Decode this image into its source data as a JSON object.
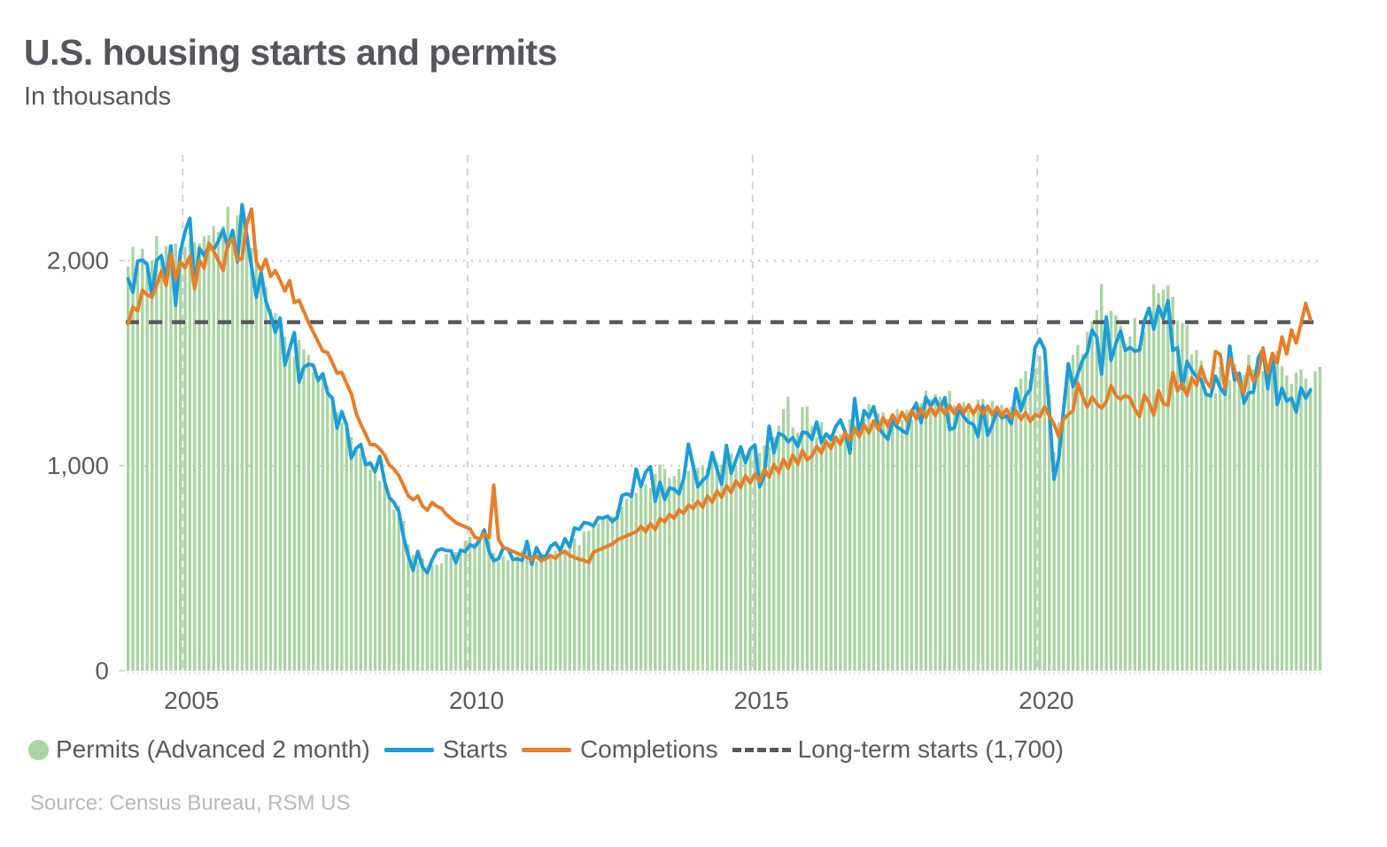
{
  "header": {
    "title": "U.S. housing starts and permits",
    "subtitle": "In thousands"
  },
  "legend": {
    "items": [
      {
        "label": "Permits (Advanced 2 month)"
      },
      {
        "label": "Starts"
      },
      {
        "label": "Completions"
      },
      {
        "label": "Long-term starts (1,700)"
      }
    ]
  },
  "source": {
    "text": "Source: Census Bureau, RSM US"
  },
  "chart_data": {
    "type": "combo-bar-line",
    "frequency": "monthly",
    "x_start": "2004-01",
    "x_end": "2024-12",
    "ylim": [
      0,
      2520
    ],
    "grid": {
      "horizontal": "dotted",
      "vertical": "dashed",
      "grid_color": "#cbcccd"
    },
    "yticks": [
      {
        "label": "0",
        "value": 0
      },
      {
        "label": "1,000",
        "value": 1000
      },
      {
        "label": "2,000",
        "value": 2000
      }
    ],
    "xticks": [
      {
        "label": "2005",
        "month_index": 12
      },
      {
        "label": "2010",
        "month_index": 72
      },
      {
        "label": "2015",
        "month_index": 132
      },
      {
        "label": "2020",
        "month_index": 192
      }
    ],
    "reference_line": {
      "label": "Long-term starts (1,700)",
      "value": 1700,
      "color": "#55585c",
      "style": "dashed"
    },
    "series": [
      {
        "name": "Permits (Advanced 2 month)",
        "type": "bar",
        "color": "#a8d5a0",
        "values": [
          1971,
          2067,
          1966,
          2057,
          1998,
          2002,
          2121,
          1998,
          2070,
          2019,
          2083,
          2061,
          2068,
          2105,
          2089,
          2084,
          2119,
          2123,
          2168,
          2139,
          2170,
          2263,
          2150,
          2220,
          2207,
          2125,
          2062,
          2053,
          1973,
          1869,
          1763,
          1745,
          1713,
          1630,
          1555,
          1532,
          1613,
          1568,
          1541,
          1457,
          1408,
          1426,
          1389,
          1317,
          1261,
          1211,
          1178,
          1139,
          1080,
          1061,
          1044,
          982,
          978,
          927,
          911,
          857,
          786,
          805,
          730,
          616,
          564,
          531,
          547,
          511,
          516,
          518,
          523,
          570,
          564,
          579,
          588,
          634,
          653,
          622,
          632,
          685,
          637,
          574,
          533,
          559,
          539,
          550,
          561,
          585,
          627,
          563,
          534,
          574,
          551,
          563,
          584,
          597,
          593,
          608,
          644,
          612,
          680,
          683,
          715,
          717,
          744,
          760,
          754,
          784,
          800,
          838,
          866,
          868,
          900,
          910,
          890,
          960,
          1005,
          985,
          940,
          950,
          985,
          926,
          974,
          1017,
          991,
          1000,
          987,
          1059,
          1015,
          1005,
          1033,
          1059,
          1002,
          1090,
          1052,
          1080,
          1060,
          1063,
          1098,
          1090,
          1140,
          1196,
          1275,
          1337,
          1186,
          1161,
          1286,
          1289,
          1193,
          1139,
          1213,
          1130,
          1152,
          1136,
          1153,
          1144,
          1225,
          1200,
          1216,
          1228,
          1300,
          1216,
          1255,
          1260,
          1228,
          1254,
          1275,
          1223,
          1272,
          1225,
          1316,
          1303,
          1366,
          1323,
          1350,
          1336,
          1301,
          1364,
          1292,
          1303,
          1310,
          1270,
          1261,
          1322,
          1326,
          1287,
          1316,
          1290,
          1297,
          1232,
          1287,
          1290,
          1425,
          1461,
          1420,
          1474,
          1536,
          1463,
          1350,
          1066,
          1212,
          1258,
          1483,
          1542,
          1589,
          1545,
          1653,
          1704,
          1758,
          1886,
          1720,
          1755,
          1733,
          1683,
          1594,
          1630,
          1721,
          1586,
          1653,
          1717,
          1885,
          1841,
          1857,
          1879,
          1823,
          1708,
          1696,
          1685,
          1542,
          1564,
          1512,
          1351,
          1337,
          1354,
          1482,
          1437,
          1417,
          1496,
          1441,
          1443,
          1541,
          1471,
          1498,
          1460,
          1493,
          1470,
          1563,
          1485,
          1440,
          1399,
          1454,
          1470,
          1425,
          1382,
          1460,
          1482
        ]
      },
      {
        "name": "Starts",
        "type": "line",
        "color": "#1b9dd9",
        "values": [
          1911,
          1846,
          1998,
          2003,
          1981,
          1828,
          2002,
          2024,
          1905,
          2072,
          1782,
          2042,
          2144,
          2207,
          1864,
          2061,
          2025,
          2068,
          2054,
          2095,
          2151,
          2065,
          2147,
          1994,
          2273,
          2119,
          1969,
          1821,
          1942,
          1802,
          1737,
          1650,
          1720,
          1491,
          1570,
          1649,
          1409,
          1480,
          1495,
          1490,
          1415,
          1448,
          1354,
          1330,
          1183,
          1264,
          1197,
          1037,
          1084,
          1103,
          1005,
          1013,
          971,
          1046,
          923,
          844,
          820,
          777,
          652,
          560,
          490,
          582,
          505,
          478,
          540,
          585,
          594,
          586,
          585,
          527,
          588,
          581,
          614,
          604,
          636,
          687,
          583,
          536,
          546,
          599,
          594,
          543,
          545,
          539,
          630,
          518,
          600,
          554,
          561,
          608,
          623,
          585,
          644,
          604,
          696,
          689,
          723,
          718,
          706,
          747,
          744,
          754,
          728,
          749,
          854,
          863,
          851,
          983,
          898,
          969,
          994,
          826,
          919,
          835,
          891,
          885,
          863,
          936,
          1105,
          999,
          897,
          928,
          950,
          1063,
          984,
          909,
          1098,
          963,
          1028,
          1092,
          1015,
          1081,
          1101,
          897,
          954,
          1192,
          1063,
          1157,
          1147,
          1117,
          1137,
          1093,
          1163,
          1160,
          1128,
          1213,
          1113,
          1155,
          1128,
          1190,
          1223,
          1164,
          1062,
          1328,
          1149,
          1268,
          1236,
          1288,
          1189,
          1154,
          1129,
          1217,
          1188,
          1172,
          1158,
          1265,
          1303,
          1210,
          1334,
          1290,
          1327,
          1276,
          1332,
          1177,
          1184,
          1279,
          1238,
          1211,
          1202,
          1142,
          1291,
          1149,
          1199,
          1267,
          1233,
          1243,
          1204,
          1375,
          1269,
          1340,
          1371,
          1578,
          1617,
          1567,
          1269,
          934,
          1038,
          1273,
          1497,
          1386,
          1448,
          1514,
          1551,
          1661,
          1625,
          1447,
          1725,
          1514,
          1594,
          1657,
          1562,
          1576,
          1559,
          1563,
          1706,
          1768,
          1666,
          1777,
          1716,
          1805,
          1562,
          1575,
          1377,
          1508,
          1465,
          1434,
          1419,
          1348,
          1340,
          1436,
          1380,
          1348,
          1583,
          1418,
          1451,
          1305,
          1356,
          1359,
          1525,
          1568,
          1376,
          1546,
          1299,
          1377,
          1315,
          1329,
          1262,
          1379,
          1330,
          1368
        ]
      },
      {
        "name": "Completions",
        "type": "line",
        "color": "#e87e27",
        "values": [
          1693,
          1773,
          1756,
          1855,
          1834,
          1820,
          1880,
          1949,
          1878,
          2033,
          1910,
          1994,
          1966,
          2022,
          1862,
          2001,
          1963,
          2085,
          2045,
          2002,
          1952,
          2084,
          2107,
          2002,
          2010,
          2181,
          2252,
          1994,
          1952,
          2007,
          1923,
          1951,
          1904,
          1852,
          1903,
          1795,
          1807,
          1752,
          1698,
          1651,
          1605,
          1559,
          1552,
          1503,
          1452,
          1455,
          1402,
          1352,
          1257,
          1202,
          1154,
          1103,
          1102,
          1082,
          1052,
          1003,
          983,
          952,
          903,
          853,
          833,
          852,
          803,
          783,
          820,
          802,
          792,
          762,
          743,
          722,
          712,
          702,
          692,
          652,
          642,
          668,
          648,
          905,
          640,
          602,
          592,
          582,
          572,
          562,
          552,
          542,
          558,
          536,
          548,
          562,
          548,
          572,
          582,
          562,
          552,
          544,
          538,
          528,
          578,
          588,
          598,
          608,
          618,
          638,
          648,
          658,
          668,
          678,
          704,
          678,
          718,
          688,
          742,
          726,
          762,
          744,
          784,
          768,
          808,
          792,
          826,
          798,
          852,
          822,
          876,
          846,
          902,
          870,
          926,
          894,
          950,
          916,
          958,
          922,
          982,
          944,
          1006,
          966,
          1030,
          988,
          1052,
          1008,
          1074,
          1028,
          1048,
          1094,
          1062,
          1118,
          1084,
          1140,
          1104,
          1162,
          1124,
          1182,
          1142,
          1200,
          1160,
          1218,
          1176,
          1234,
          1192,
          1248,
          1206,
          1260,
          1218,
          1270,
          1228,
          1278,
          1236,
          1284,
          1244,
          1290,
          1250,
          1294,
          1254,
          1296,
          1256,
          1296,
          1254,
          1294,
          1252,
          1290,
          1248,
          1284,
          1242,
          1276,
          1234,
          1268,
          1226,
          1258,
          1216,
          1248,
          1239,
          1287,
          1242,
          1202,
          1142,
          1226,
          1250,
          1268,
          1402,
          1338,
          1286,
          1334,
          1302,
          1281,
          1312,
          1391,
          1343,
          1324,
          1343,
          1330,
          1276,
          1240,
          1344,
          1308,
          1246,
          1366,
          1303,
          1295,
          1454,
          1365,
          1402,
          1342,
          1427,
          1392,
          1480,
          1411,
          1382,
          1557,
          1542,
          1375,
          1522,
          1468,
          1406,
          1355,
          1482,
          1410,
          1447,
          1574,
          1452,
          1548,
          1502,
          1628,
          1545,
          1662,
          1598,
          1692,
          1792,
          1712
        ]
      }
    ]
  }
}
